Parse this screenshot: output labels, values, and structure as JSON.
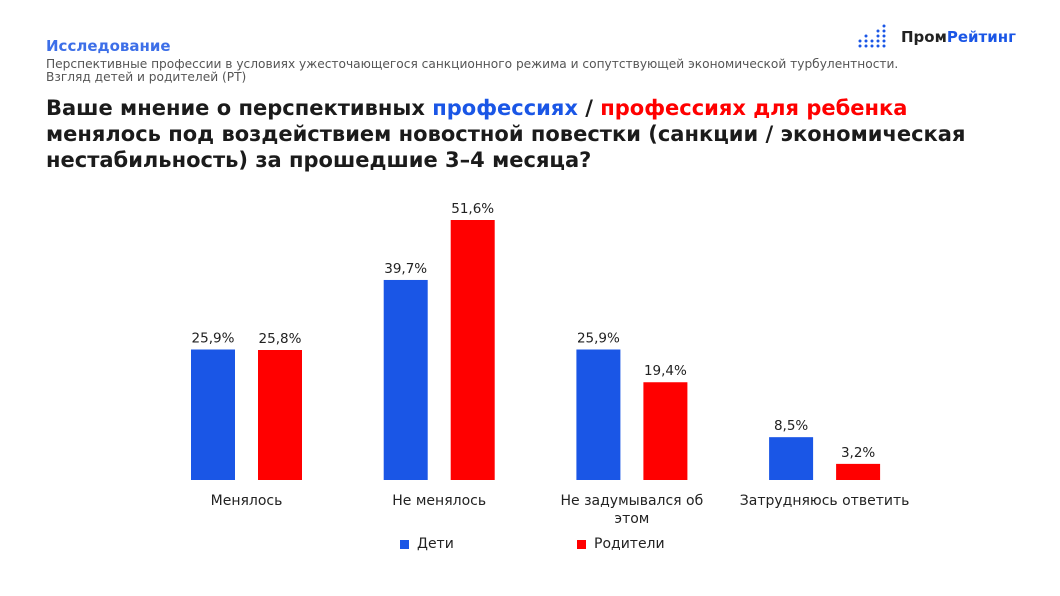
{
  "header": {
    "kicker": "Исследование",
    "subtitle_line1": "Перспективные профессии в условиях ужесточающегося санкционного режима и сопутствующей экономической турбулентности.",
    "subtitle_line2": "Взгляд детей и родителей (РТ)",
    "title_part1": "Ваше мнение о перспективных ",
    "title_blue": "профессиях",
    "title_sep": " / ",
    "title_red": "профессиях для ребенка",
    "title_part2": "менялось под воздействием новостной повестки (санкции / экономическая нестабильность) за прошедшие 3–4 месяца?"
  },
  "logo": {
    "text_dark": "Пром",
    "text_blue": "Рейтинг"
  },
  "colors": {
    "blue": "#1a56e6",
    "red": "#ff0000"
  },
  "chart_data": {
    "type": "bar",
    "categories": [
      "Менялось",
      "Не менялось",
      "Не задумывался об этом",
      "Затрудняюсь ответить"
    ],
    "series": [
      {
        "name": "Дети",
        "color": "#1a56e6",
        "values": [
          25.9,
          39.7,
          25.9,
          8.5
        ],
        "labels": [
          "25,9%",
          "39,7%",
          "25,9%",
          "8,5%"
        ]
      },
      {
        "name": "Родители",
        "color": "#ff0000",
        "values": [
          25.8,
          51.6,
          19.4,
          3.2
        ],
        "labels": [
          "25,8%",
          "51,6%",
          "19,4%",
          "3,2%"
        ]
      }
    ],
    "ylim": [
      0,
      51.6
    ],
    "grid": false,
    "legend": "bottom"
  }
}
